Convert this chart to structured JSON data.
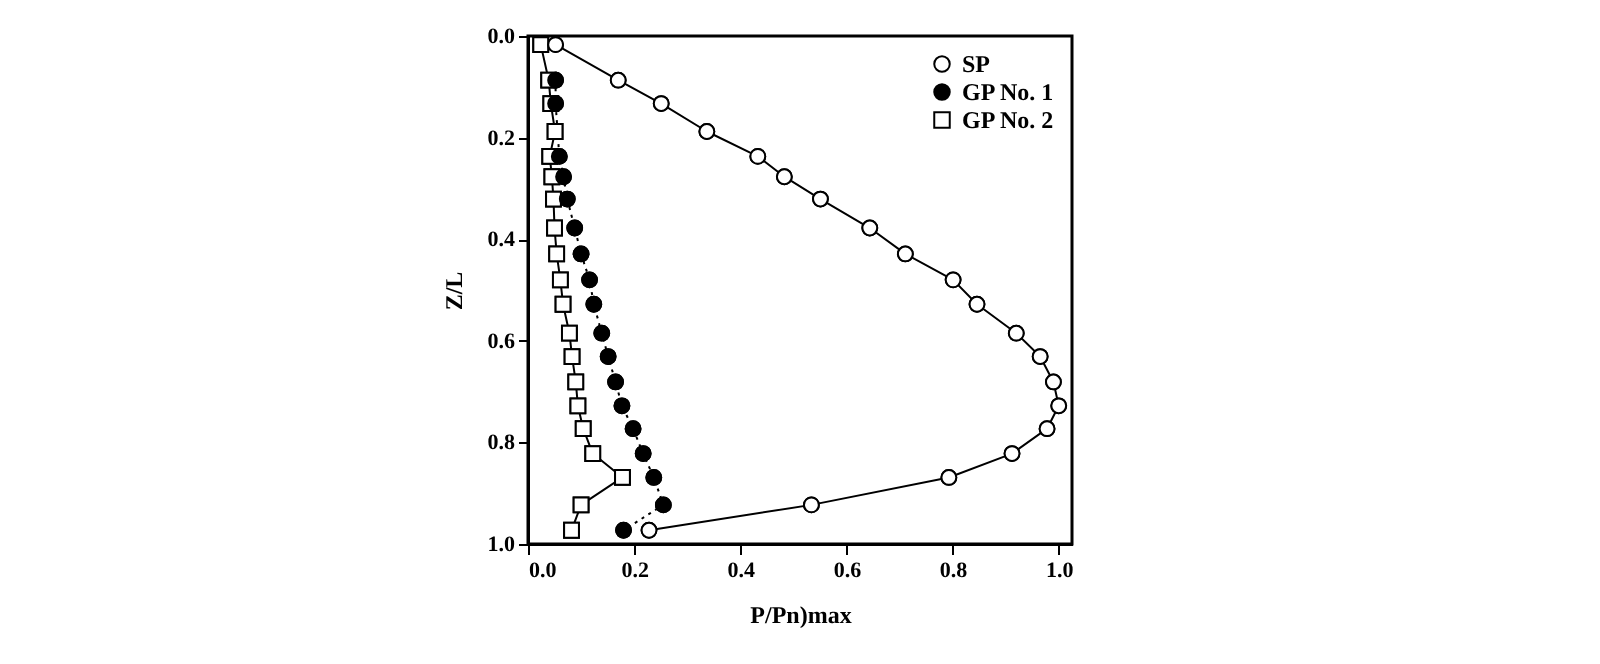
{
  "chart_data": {
    "type": "line",
    "xlabel": "P/Pn)max",
    "ylabel": "Z/L",
    "xlim": [
      0,
      1.025
    ],
    "xticks": [
      {
        "value": 0,
        "label": "0.0"
      },
      0.2,
      0.4,
      0.6,
      0.8,
      {
        "value": 1,
        "label": "1.0"
      }
    ],
    "ylim": [
      1,
      0
    ],
    "yticks": [
      {
        "value": 0,
        "label": "0.0"
      },
      0.2,
      0.4,
      0.6,
      0.8,
      {
        "value": 1,
        "label": "1.0"
      }
    ],
    "grid": false,
    "legend": "top right",
    "series": [
      {
        "name": "SP",
        "color": "#ffffff",
        "marker": "circle",
        "line_style": "solid",
        "x": [
          0.052,
          0.17,
          0.251,
          0.337,
          0.433,
          0.483,
          0.551,
          0.644,
          0.711,
          0.801,
          0.846,
          0.92,
          0.965,
          0.99,
          1.0,
          0.978,
          0.912,
          0.793,
          0.534,
          0.228
        ],
        "values": [
          0.017,
          0.087,
          0.133,
          0.188,
          0.237,
          0.277,
          0.321,
          0.378,
          0.429,
          0.48,
          0.528,
          0.585,
          0.631,
          0.681,
          0.728,
          0.773,
          0.822,
          0.869,
          0.923,
          0.973
        ]
      },
      {
        "name": "GP No. 1",
        "color": "#000000",
        "marker": "circle",
        "line_style": "dotted",
        "x": [
          0.052,
          0.052,
          0.059,
          0.067,
          0.074,
          0.088,
          0.1,
          0.116,
          0.124,
          0.139,
          0.151,
          0.165,
          0.177,
          0.198,
          0.217,
          0.237,
          0.255,
          0.18
        ],
        "values": [
          0.087,
          0.133,
          0.237,
          0.277,
          0.321,
          0.378,
          0.429,
          0.48,
          0.528,
          0.585,
          0.631,
          0.681,
          0.728,
          0.773,
          0.822,
          0.869,
          0.923,
          0.973
        ]
      },
      {
        "name": "GP No. 2",
        "color": "#ffffff",
        "marker": "square",
        "line_style": "solid",
        "x": [
          0.024,
          0.039,
          0.043,
          0.051,
          0.041,
          0.045,
          0.048,
          0.05,
          0.054,
          0.061,
          0.066,
          0.078,
          0.083,
          0.09,
          0.094,
          0.104,
          0.122,
          0.178,
          0.1,
          0.082
        ],
        "values": [
          0.017,
          0.087,
          0.133,
          0.188,
          0.237,
          0.277,
          0.321,
          0.378,
          0.429,
          0.48,
          0.528,
          0.585,
          0.631,
          0.681,
          0.728,
          0.773,
          0.822,
          0.869,
          0.923,
          0.973
        ]
      }
    ]
  }
}
